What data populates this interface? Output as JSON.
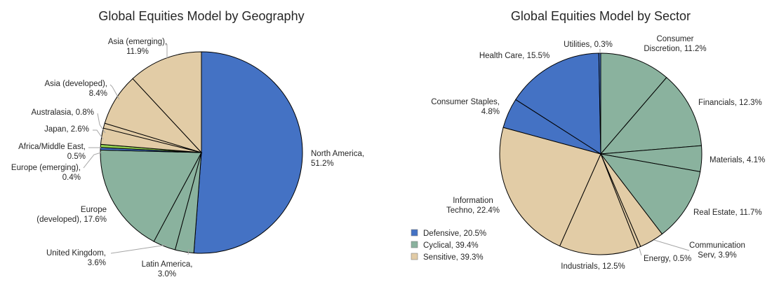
{
  "colors": {
    "defensive": "#4472C4",
    "cyclical": "#8AB29E",
    "sensitive": "#E2CCA6",
    "green_slice": "#92D050",
    "leader": "#A6A6A6",
    "edge": "#000000"
  },
  "chart_data": [
    {
      "type": "pie",
      "title": "Global Equities Model by Geography",
      "slices": [
        {
          "label_lines": [
            "North America,",
            "51.2%"
          ],
          "name": "North America",
          "value": 51.2,
          "group": "defensive"
        },
        {
          "label_lines": [
            "Latin America,",
            "3.0%"
          ],
          "name": "Latin America",
          "value": 3.0,
          "group": "cyclical"
        },
        {
          "label_lines": [
            "United Kingdom,",
            "3.6%"
          ],
          "name": "United Kingdom",
          "value": 3.6,
          "group": "cyclical"
        },
        {
          "label_lines": [
            "Europe",
            "(developed), 17.6%"
          ],
          "name": "Europe (developed)",
          "value": 17.6,
          "group": "cyclical"
        },
        {
          "label_lines": [
            "Europe (emerging),",
            "0.4%"
          ],
          "name": "Europe (emerging)",
          "value": 0.4,
          "group": "defensive"
        },
        {
          "label_lines": [
            "Africa/Middle East,",
            "0.5%"
          ],
          "name": "Africa/Middle East",
          "value": 0.5,
          "group": "green_slice"
        },
        {
          "label_lines": [
            "Japan, 2.6%"
          ],
          "name": "Japan",
          "value": 2.6,
          "group": "sensitive"
        },
        {
          "label_lines": [
            "Australasia, 0.8%"
          ],
          "name": "Australasia",
          "value": 0.8,
          "group": "sensitive"
        },
        {
          "label_lines": [
            "Asia (developed),",
            "8.4%"
          ],
          "name": "Asia (developed)",
          "value": 8.4,
          "group": "sensitive"
        },
        {
          "label_lines": [
            "Asia (emerging),",
            "11.9%"
          ],
          "name": "Asia (emerging)",
          "value": 11.9,
          "group": "sensitive"
        }
      ]
    },
    {
      "type": "pie",
      "title": "Global Equities Model by Sector",
      "slices": [
        {
          "label_lines": [
            "Consumer",
            "Discretion, 11.2%"
          ],
          "name": "Consumer Discretion",
          "value": 11.2,
          "group": "cyclical"
        },
        {
          "label_lines": [
            "Financials, 12.3%"
          ],
          "name": "Financials",
          "value": 12.3,
          "group": "cyclical"
        },
        {
          "label_lines": [
            "Materials, 4.1%"
          ],
          "name": "Materials",
          "value": 4.1,
          "group": "cyclical"
        },
        {
          "label_lines": [
            "Real Estate, 11.7%"
          ],
          "name": "Real Estate",
          "value": 11.7,
          "group": "cyclical"
        },
        {
          "label_lines": [
            "Communication",
            "Serv, 3.9%"
          ],
          "name": "Communication Serv",
          "value": 3.9,
          "group": "sensitive"
        },
        {
          "label_lines": [
            "Energy, 0.5%"
          ],
          "name": "Energy",
          "value": 0.5,
          "group": "sensitive"
        },
        {
          "label_lines": [
            "Industrials, 12.5%"
          ],
          "name": "Industrials",
          "value": 12.5,
          "group": "sensitive"
        },
        {
          "label_lines": [
            "Information",
            "Techno, 22.4%"
          ],
          "name": "Information Techno",
          "value": 22.4,
          "group": "sensitive"
        },
        {
          "label_lines": [
            "Consumer Staples,",
            "4.8%"
          ],
          "name": "Consumer Staples",
          "value": 4.8,
          "group": "defensive"
        },
        {
          "label_lines": [
            "Health Care, 15.5%"
          ],
          "name": "Health Care",
          "value": 15.5,
          "group": "defensive"
        },
        {
          "label_lines": [
            "Utilities, 0.3%"
          ],
          "name": "Utilities",
          "value": 0.3,
          "group": "defensive"
        }
      ],
      "legend": {
        "placement": "bottom-left",
        "entries": [
          {
            "label": "Defensive, 20.5%",
            "group": "defensive"
          },
          {
            "label": "Cyclical, 39.4%",
            "group": "cyclical"
          },
          {
            "label": "Sensitive, 39.3%",
            "group": "sensitive"
          }
        ]
      }
    }
  ]
}
